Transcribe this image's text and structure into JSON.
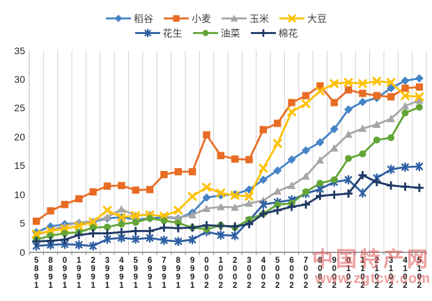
{
  "watermark": {
    "text": "中国特产网",
    "url": "www.zgtcw.com",
    "color": "#e05252"
  },
  "chart_data": {
    "type": "line",
    "title": "",
    "xlabel": "",
    "ylabel": "",
    "ylim": [
      0,
      35
    ],
    "y_ticks": [
      0,
      5,
      10,
      15,
      20,
      25,
      30,
      35
    ],
    "grid": "vertical-only",
    "legend_position": "top",
    "categories": [
      "1985",
      "1988",
      "1990",
      "1991",
      "1992",
      "1993",
      "1994",
      "1995",
      "1996",
      "1997",
      "1998",
      "1999",
      "2000",
      "2001",
      "2002",
      "2003",
      "2004",
      "2005",
      "2006",
      "2007",
      "2008",
      "2009",
      "2010",
      "2011",
      "2012",
      "2013",
      "2014",
      "2015"
    ],
    "series": [
      {
        "name": "稻谷",
        "color": "#4584C6",
        "marker": "diamond",
        "values": [
          3.5,
          4.5,
          4.9,
          5.1,
          5.3,
          5.9,
          6.1,
          5.7,
          5.9,
          6.1,
          5.9,
          6.9,
          9.5,
          9.9,
          10.1,
          10.9,
          12.6,
          14.2,
          16.1,
          17.7,
          19.1,
          21.4,
          24.8,
          26.1,
          26.8,
          28.5,
          29.8,
          30.2
        ]
      },
      {
        "name": "小麦",
        "color": "#E86C24",
        "marker": "square",
        "values": [
          5.4,
          7.2,
          8.3,
          9.3,
          10.5,
          11.5,
          11.6,
          10.8,
          10.9,
          13.5,
          14.0,
          14.0,
          20.4,
          16.8,
          16.2,
          16.1,
          21.3,
          22.4,
          26.0,
          27.2,
          28.9,
          26.0,
          28.2,
          27.6,
          27.2,
          27.0,
          28.5,
          28.7
        ]
      },
      {
        "name": "玉米",
        "color": "#A6A6A6",
        "marker": "triangle",
        "values": [
          3.0,
          3.8,
          4.6,
          5.2,
          5.4,
          6.1,
          7.5,
          6.4,
          6.6,
          6.2,
          6.0,
          6.5,
          7.6,
          7.9,
          7.8,
          8.5,
          9.0,
          10.6,
          11.6,
          13.2,
          16.0,
          18.1,
          20.5,
          21.5,
          22.2,
          23.2,
          25.4,
          26.4
        ]
      },
      {
        "name": "大豆",
        "color": "#FFC000",
        "marker": "x",
        "values": [
          3.2,
          3.7,
          4.1,
          4.6,
          5.3,
          7.3,
          6.1,
          6.4,
          6.5,
          6.3,
          7.3,
          9.7,
          11.3,
          10.3,
          9.9,
          9.7,
          14.6,
          18.9,
          24.4,
          25.8,
          28.0,
          29.3,
          29.5,
          29.3,
          29.7,
          29.5,
          27.2,
          27.0
        ]
      },
      {
        "name": "花生",
        "color": "#2E5FA3",
        "marker": "asterisk",
        "values": [
          1.1,
          1.3,
          1.4,
          1.3,
          1.1,
          2.3,
          2.5,
          2.3,
          2.5,
          2.1,
          1.9,
          2.2,
          3.6,
          3.0,
          2.9,
          5.5,
          8.3,
          8.7,
          9.1,
          10.2,
          11.0,
          12.2,
          12.6,
          10.3,
          12.9,
          14.4,
          14.8,
          14.9
        ]
      },
      {
        "name": "油菜",
        "color": "#63A537",
        "marker": "circle",
        "values": [
          2.2,
          2.9,
          3.3,
          3.5,
          4.3,
          4.4,
          4.9,
          5.2,
          5.9,
          5.5,
          5.1,
          4.3,
          4.0,
          4.7,
          4.3,
          5.7,
          6.7,
          8.3,
          8.5,
          10.5,
          12.0,
          12.6,
          16.3,
          17.1,
          19.5,
          19.9,
          24.2,
          25.2
        ]
      },
      {
        "name": "棉花",
        "color": "#1F3864",
        "marker": "plus",
        "values": [
          1.9,
          2.0,
          2.2,
          3.0,
          3.3,
          3.3,
          3.5,
          3.7,
          3.7,
          4.3,
          4.2,
          4.3,
          4.7,
          4.6,
          4.5,
          4.9,
          6.7,
          7.3,
          7.9,
          8.3,
          9.8,
          10.0,
          10.2,
          13.4,
          12.2,
          11.6,
          11.4,
          11.2
        ]
      }
    ]
  }
}
